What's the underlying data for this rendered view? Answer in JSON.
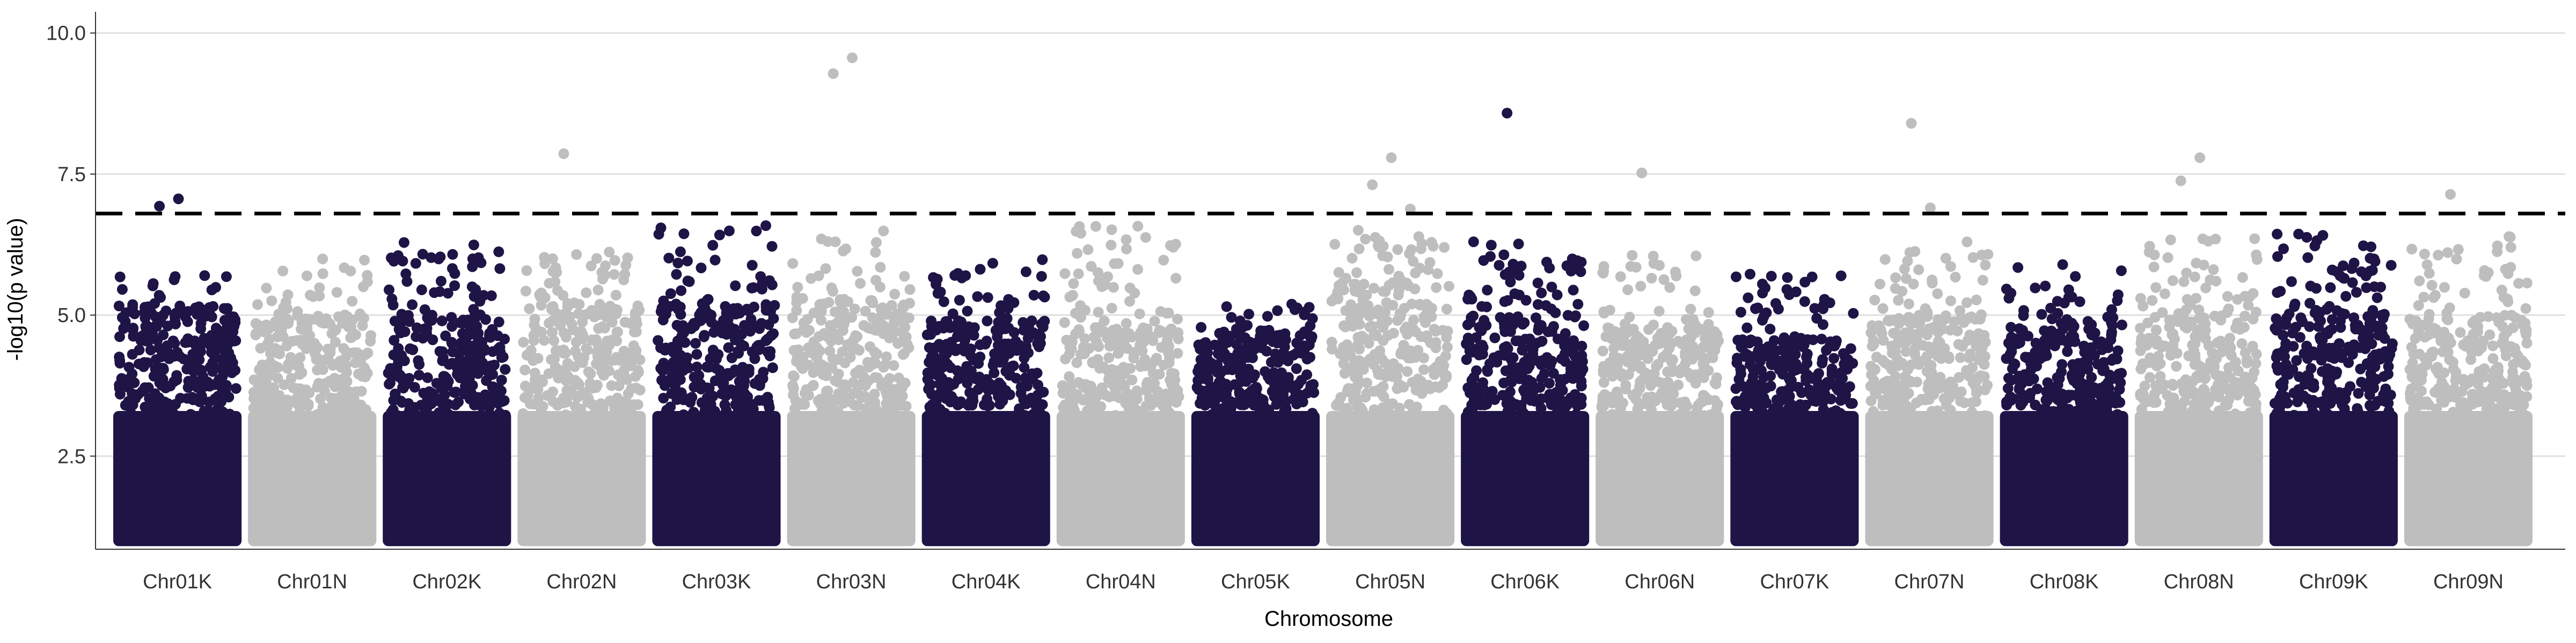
{
  "chart_data": {
    "type": "scatter",
    "subtype": "manhattan",
    "title": "",
    "xlabel": "Chromosome",
    "ylabel": "-log10(p value)",
    "ylim": [
      0.85,
      10.3
    ],
    "yticks": [
      2.5,
      5.0,
      7.5,
      10.0
    ],
    "ytick_labels": [
      "2.5",
      "5.0",
      "7.5",
      "10.0"
    ],
    "grid": "horizontal major lines only",
    "legend": "none",
    "threshold": 6.8,
    "threshold_style": "dashed black line",
    "point_floor": 1.0,
    "colors": {
      "dark": "#1f1446",
      "light": "#bebebe",
      "threshold": "#000000",
      "grid": "#d4d4d4",
      "axis": "#333333"
    },
    "chromosomes": [
      {
        "name": "Chr01K",
        "color": "dark",
        "top_band": 5.2,
        "max_bulk": 5.7,
        "peaks": [
          6.93,
          7.06
        ]
      },
      {
        "name": "Chr01N",
        "color": "light",
        "top_band": 5.0,
        "max_bulk": 6.0,
        "peaks": []
      },
      {
        "name": "Chr02K",
        "color": "dark",
        "top_band": 5.0,
        "max_bulk": 6.3,
        "peaks": []
      },
      {
        "name": "Chr02N",
        "color": "light",
        "top_band": 5.2,
        "max_bulk": 6.2,
        "peaks": [
          7.86
        ]
      },
      {
        "name": "Chr03K",
        "color": "dark",
        "top_band": 5.2,
        "max_bulk": 6.6,
        "peaks": []
      },
      {
        "name": "Chr03N",
        "color": "light",
        "top_band": 5.3,
        "max_bulk": 6.5,
        "peaks": [
          9.28,
          9.56
        ]
      },
      {
        "name": "Chr04K",
        "color": "dark",
        "top_band": 4.9,
        "max_bulk": 6.0,
        "peaks": []
      },
      {
        "name": "Chr04N",
        "color": "light",
        "top_band": 4.8,
        "max_bulk": 6.6,
        "peaks": []
      },
      {
        "name": "Chr05K",
        "color": "dark",
        "top_band": 4.8,
        "max_bulk": 5.2,
        "peaks": []
      },
      {
        "name": "Chr05N",
        "color": "light",
        "top_band": 5.6,
        "max_bulk": 6.6,
        "peaks": [
          7.31,
          7.79,
          6.88
        ]
      },
      {
        "name": "Chr06K",
        "color": "dark",
        "top_band": 5.0,
        "max_bulk": 6.3,
        "peaks": [
          8.58
        ]
      },
      {
        "name": "Chr06N",
        "color": "light",
        "top_band": 4.8,
        "max_bulk": 6.1,
        "peaks": [
          7.52
        ]
      },
      {
        "name": "Chr07K",
        "color": "dark",
        "top_band": 4.6,
        "max_bulk": 5.9,
        "peaks": []
      },
      {
        "name": "Chr07N",
        "color": "light",
        "top_band": 5.0,
        "max_bulk": 6.3,
        "peaks": [
          8.4,
          6.9
        ]
      },
      {
        "name": "Chr08K",
        "color": "dark",
        "top_band": 4.9,
        "max_bulk": 5.9,
        "peaks": []
      },
      {
        "name": "Chr08N",
        "color": "light",
        "top_band": 5.0,
        "max_bulk": 6.4,
        "peaks": [
          7.38,
          7.79
        ]
      },
      {
        "name": "Chr09K",
        "color": "dark",
        "top_band": 5.1,
        "max_bulk": 6.6,
        "peaks": []
      },
      {
        "name": "Chr09N",
        "color": "light",
        "top_band": 5.0,
        "max_bulk": 6.4,
        "peaks": [
          7.14
        ]
      }
    ]
  }
}
